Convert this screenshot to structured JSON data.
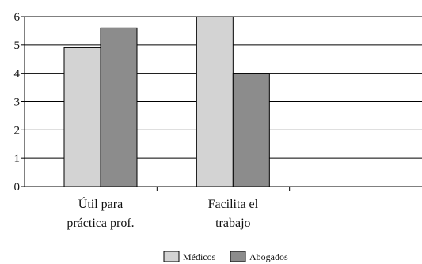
{
  "chart_data": {
    "type": "bar",
    "categories": [
      [
        "Útil para",
        "práctica prof."
      ],
      [
        "Facilita el",
        "trabajo"
      ],
      [
        "",
        ""
      ]
    ],
    "series": [
      {
        "name": "Médicos",
        "values": [
          4.9,
          6.0,
          null
        ],
        "color": "#d3d3d3"
      },
      {
        "name": "Abogados",
        "values": [
          5.6,
          4.0,
          null
        ],
        "color": "#8c8c8c"
      }
    ],
    "yticks": [
      0,
      1,
      2,
      3,
      4,
      5,
      6
    ],
    "ylim": [
      0,
      6
    ],
    "grid": true,
    "legend": "bottom"
  }
}
